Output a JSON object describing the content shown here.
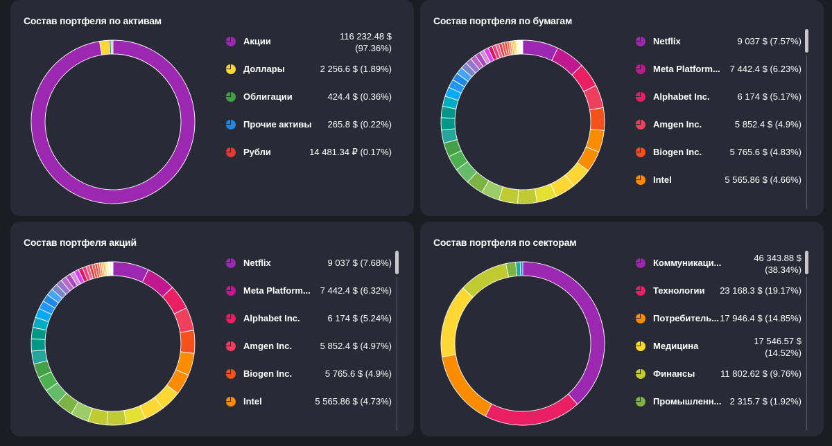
{
  "panels": [
    {
      "title": "Состав портфеля по активам",
      "legend": [
        {
          "label": "Акции",
          "value": "116 232.48 $ (97.36%)",
          "color": "#9c27b0"
        },
        {
          "label": "Доллары",
          "value": "2 256.6 $ (1.89%)",
          "color": "#fdd835"
        },
        {
          "label": "Облигации",
          "value": "424.4 $ (0.36%)",
          "color": "#43a047"
        },
        {
          "label": "Прочие активы",
          "value": "265.8 $ (0.22%)",
          "color": "#1e88e5"
        },
        {
          "label": "Рубли",
          "value": "14 481.34 ₽ (0.17%)",
          "color": "#e53935"
        }
      ]
    },
    {
      "title": "Состав портфеля по бумагам",
      "legend": [
        {
          "label": "Netflix",
          "value": "9 037 $ (7.57%)",
          "color": "#9c27b0"
        },
        {
          "label": "Meta Platform...",
          "value": "7 442.4 $ (6.23%)",
          "color": "#c2188f"
        },
        {
          "label": "Alphabet Inc.",
          "value": "6 174 $ (5.17%)",
          "color": "#e91e63"
        },
        {
          "label": "Amgen Inc.",
          "value": "5 852.4 $ (4.9%)",
          "color": "#ef3f5e"
        },
        {
          "label": "Biogen Inc.",
          "value": "5 765.6 $ (4.83%)",
          "color": "#f4511e"
        },
        {
          "label": "Intel",
          "value": "5 565.86 $ (4.66%)",
          "color": "#fb8c00"
        }
      ]
    },
    {
      "title": "Состав портфеля акций",
      "legend": [
        {
          "label": "Netflix",
          "value": "9 037 $ (7.68%)",
          "color": "#9c27b0"
        },
        {
          "label": "Meta Platform...",
          "value": "7 442.4 $ (6.32%)",
          "color": "#c2188f"
        },
        {
          "label": "Alphabet Inc.",
          "value": "6 174 $ (5.24%)",
          "color": "#e91e63"
        },
        {
          "label": "Amgen Inc.",
          "value": "5 852.4 $ (4.97%)",
          "color": "#ef3f5e"
        },
        {
          "label": "Biogen Inc.",
          "value": "5 765.6 $ (4.9%)",
          "color": "#f4511e"
        },
        {
          "label": "Intel",
          "value": "5 565.86 $ (4.73%)",
          "color": "#fb8c00"
        }
      ]
    },
    {
      "title": "Состав портфеля по секторам",
      "legend": [
        {
          "label": "Коммуникаци...",
          "value": "46 343.88 $ (38.34%)",
          "color": "#9c27b0"
        },
        {
          "label": "Технологии",
          "value": "23 168.3 $ (19.17%)",
          "color": "#e91e63"
        },
        {
          "label": "Потребитель...",
          "value": "17 946.4 $ (14.85%)",
          "color": "#fb8c00"
        },
        {
          "label": "Медицина",
          "value": "17 546.57 $ (14.52%)",
          "color": "#fdd835"
        },
        {
          "label": "Финансы",
          "value": "11 802.62 $ (9.76%)",
          "color": "#c0ca33"
        },
        {
          "label": "Промышленн...",
          "value": "2 315.7 $ (1.92%)",
          "color": "#7cb342"
        }
      ]
    }
  ],
  "chart_data": [
    {
      "type": "pie",
      "title": "Состав портфеля по активам",
      "categories": [
        "Акции",
        "Доллары",
        "Облигации",
        "Прочие активы",
        "Рубли"
      ],
      "values": [
        97.36,
        1.89,
        0.36,
        0.22,
        0.17
      ],
      "colors": [
        "#9c27b0",
        "#fdd835",
        "#43a047",
        "#1e88e5",
        "#e53935"
      ]
    },
    {
      "type": "pie",
      "title": "Состав портфеля по бумагам",
      "categories": [
        "Netflix",
        "Meta Platform...",
        "Alphabet Inc.",
        "Amgen Inc.",
        "Biogen Inc.",
        "Intel"
      ],
      "values": [
        7.57,
        6.23,
        5.17,
        4.9,
        4.83,
        4.66
      ],
      "colors": [
        "#9c27b0",
        "#c2188f",
        "#e91e63",
        "#ef3f5e",
        "#f4511e",
        "#fb8c00"
      ],
      "other_values": [
        4.5,
        4.4,
        4.3,
        4.2,
        4.1,
        4.0,
        3.9,
        3.7,
        3.5,
        3.2,
        3.0,
        2.8,
        2.6,
        2.4,
        2.2,
        2.0,
        1.8,
        1.6,
        1.5,
        1.4,
        1.3,
        1.2,
        1.1,
        1.0,
        1.0,
        0.9,
        0.8,
        0.7,
        0.6,
        0.6,
        0.5,
        0.5,
        0.4,
        0.4,
        0.3,
        0.3,
        0.3,
        0.2,
        0.2,
        0.2,
        0.2,
        0.1,
        0.1,
        0.1,
        0.1
      ],
      "other_colors": [
        "#fb8c00",
        "#fdd835",
        "#fdd835",
        "#e6e032",
        "#c0ca33",
        "#c0ca33",
        "#9ccc65",
        "#7cb342",
        "#66bb6a",
        "#4caf50",
        "#43a047",
        "#26a69a",
        "#009688",
        "#009688",
        "#00acc1",
        "#03a9f4",
        "#2196f3",
        "#1e88e5",
        "#42a5f5",
        "#7986cb",
        "#9575cd",
        "#ba68c8",
        "#ab47bc",
        "#ce93d8",
        "#e040fb",
        "#d81b60",
        "#ec407a",
        "#f06292",
        "#e53935",
        "#ef5350",
        "#f44336",
        "#ff7043",
        "#ff8a65",
        "#ffb74d",
        "#ffa726",
        "#ffca28",
        "#ffee58",
        "#fff176",
        "#fff59d",
        "#fff9c4",
        "#ffe0b2",
        "#ffccbc",
        "#fce4ec",
        "#f3e5f5",
        "#ffffff"
      ]
    },
    {
      "type": "pie",
      "title": "Состав портфеля акций",
      "categories": [
        "Netflix",
        "Meta Platform...",
        "Alphabet Inc.",
        "Amgen Inc.",
        "Biogen Inc.",
        "Intel"
      ],
      "values": [
        7.68,
        6.32,
        5.24,
        4.97,
        4.9,
        4.73
      ],
      "colors": [
        "#9c27b0",
        "#c2188f",
        "#e91e63",
        "#ef3f5e",
        "#f4511e",
        "#fb8c00"
      ],
      "other_values": [
        4.5,
        4.4,
        4.3,
        4.2,
        4.1,
        4.0,
        3.9,
        3.7,
        3.5,
        3.2,
        3.0,
        2.8,
        2.6,
        2.4,
        2.2,
        2.0,
        1.8,
        1.6,
        1.5,
        1.4,
        1.3,
        1.2,
        1.1,
        1.0,
        1.0,
        0.9,
        0.8,
        0.7,
        0.6,
        0.6,
        0.5,
        0.5,
        0.4,
        0.4,
        0.3,
        0.3,
        0.3,
        0.2,
        0.2,
        0.2,
        0.2,
        0.1,
        0.1,
        0.1,
        0.1
      ],
      "other_colors": [
        "#fb8c00",
        "#fdd835",
        "#fdd835",
        "#e6e032",
        "#c0ca33",
        "#c0ca33",
        "#9ccc65",
        "#7cb342",
        "#66bb6a",
        "#4caf50",
        "#43a047",
        "#26a69a",
        "#009688",
        "#009688",
        "#00acc1",
        "#03a9f4",
        "#2196f3",
        "#1e88e5",
        "#42a5f5",
        "#7986cb",
        "#9575cd",
        "#ba68c8",
        "#ab47bc",
        "#ce93d8",
        "#e040fb",
        "#d81b60",
        "#ec407a",
        "#f06292",
        "#e53935",
        "#ef5350",
        "#f44336",
        "#ff7043",
        "#ff8a65",
        "#ffb74d",
        "#ffa726",
        "#ffca28",
        "#ffee58",
        "#fff176",
        "#fff59d",
        "#fff9c4",
        "#ffe0b2",
        "#ffccbc",
        "#fce4ec",
        "#f3e5f5",
        "#ffffff"
      ]
    },
    {
      "type": "pie",
      "title": "Состав портфеля по секторам",
      "categories": [
        "Коммуникаци...",
        "Технологии",
        "Потребитель...",
        "Медицина",
        "Финансы",
        "Промышленн..."
      ],
      "values": [
        38.34,
        19.17,
        14.85,
        14.52,
        9.76,
        1.92
      ],
      "colors": [
        "#9c27b0",
        "#e91e63",
        "#fb8c00",
        "#fdd835",
        "#c0ca33",
        "#7cb342"
      ],
      "other_values": [
        0.9,
        0.5
      ],
      "other_colors": [
        "#26a69a",
        "#1e88e5"
      ]
    }
  ]
}
